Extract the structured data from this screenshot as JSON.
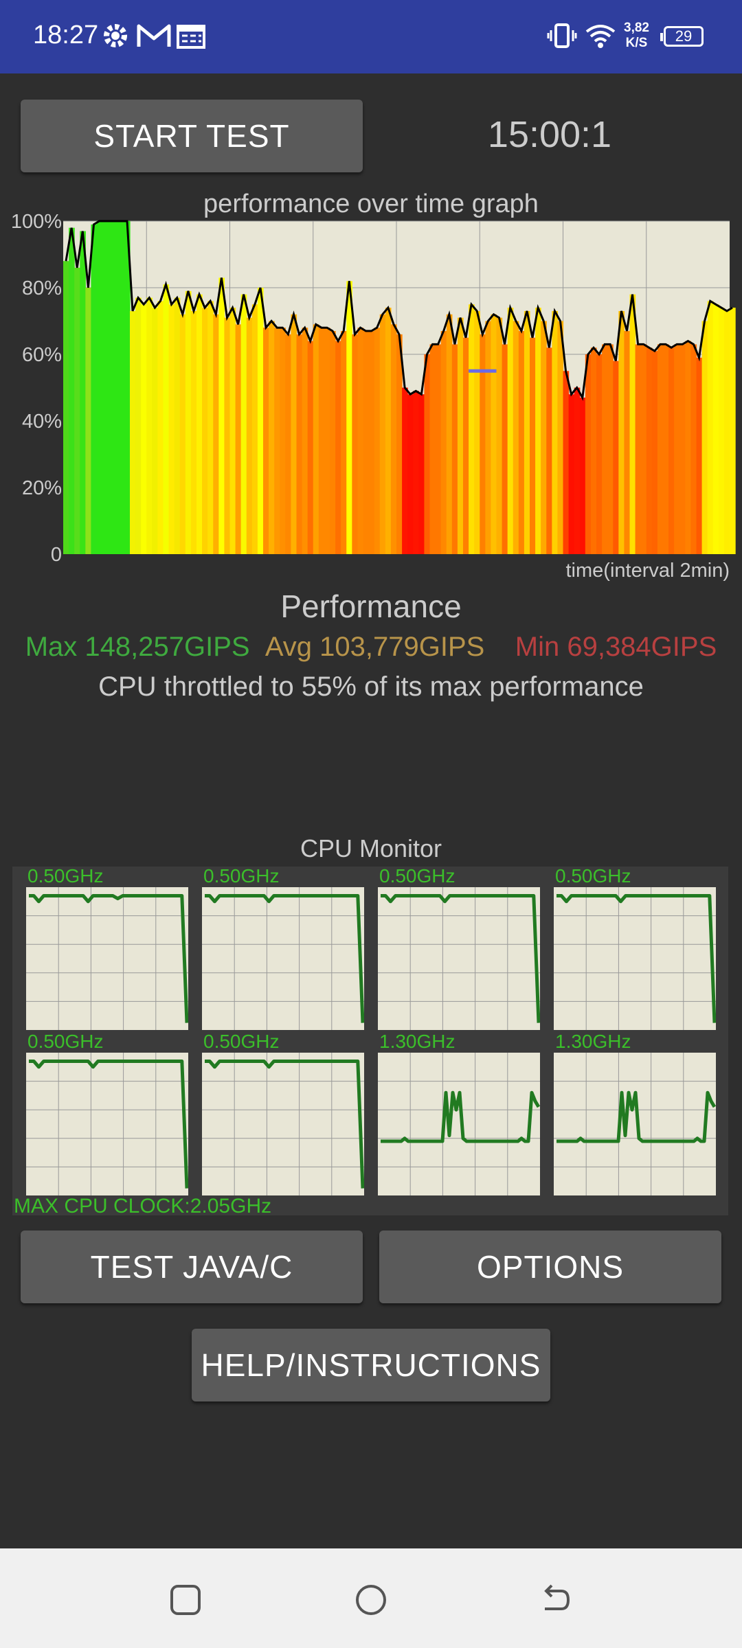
{
  "status_bar": {
    "time": "18:27",
    "icons": [
      "gear-icon",
      "gmail-icon",
      "calendar-icon",
      "vibrate-icon",
      "wifi-icon"
    ],
    "net_speed_value": "3,82",
    "net_speed_unit": "K/S",
    "battery": "29"
  },
  "controls": {
    "start_test": "START TEST",
    "timer": "15:00:1",
    "test_java_c": "TEST JAVA/C",
    "options": "OPTIONS",
    "help": "HELP/INSTRUCTIONS"
  },
  "chart_data": {
    "type": "area",
    "title": "performance over time graph",
    "xlabel": "time(interval 2min)",
    "ylabel": "",
    "ylim": [
      0,
      100
    ],
    "y_ticks": [
      "0",
      "20%",
      "40%",
      "60%",
      "80%",
      "100%"
    ],
    "x_gridlines": 8,
    "grid": true,
    "x": [
      0,
      1,
      2,
      3,
      4,
      5,
      6,
      7,
      8,
      9,
      10,
      11,
      12,
      13,
      14,
      15,
      16,
      17,
      18,
      19,
      20,
      21,
      22,
      23,
      24,
      25,
      26,
      27,
      28,
      29,
      30,
      31,
      32,
      33,
      34,
      35,
      36,
      37,
      38,
      39,
      40,
      41,
      42,
      43,
      44,
      45,
      46,
      47,
      48,
      49,
      50,
      51,
      52,
      53,
      54,
      55,
      56,
      57,
      58,
      59,
      60,
      61,
      62,
      63,
      64,
      65,
      66,
      67,
      68,
      69,
      70,
      71,
      72,
      73,
      74,
      75,
      76,
      77,
      78,
      79,
      80,
      81,
      82,
      83,
      84,
      85,
      86,
      87,
      88,
      89,
      90,
      91,
      92,
      93,
      94,
      95,
      96,
      97,
      98,
      99,
      100,
      101,
      102,
      103,
      104,
      105,
      106,
      107,
      108,
      109,
      110,
      111,
      112,
      113,
      114,
      115,
      116,
      117,
      118,
      119,
      120
    ],
    "series": [
      {
        "values": [
          88,
          98,
          86,
          97,
          80,
          99,
          100,
          100,
          100,
          100,
          100,
          100,
          73,
          77,
          75,
          77,
          74,
          76,
          81,
          75,
          77,
          72,
          79,
          73,
          78,
          74,
          76,
          72,
          83,
          71,
          74,
          69,
          78,
          71,
          75,
          80,
          68,
          70,
          68,
          68,
          66,
          72,
          66,
          68,
          64,
          69,
          68,
          68,
          67,
          64,
          67,
          82,
          66,
          68,
          67,
          67,
          68,
          72,
          74,
          69,
          66,
          50,
          48,
          49,
          48,
          60,
          63,
          63,
          67,
          72,
          63,
          71,
          65,
          75,
          73,
          66,
          70,
          72,
          71,
          63,
          74,
          70,
          67,
          73,
          65,
          74,
          70,
          62,
          73,
          70,
          55,
          48,
          50,
          47,
          60,
          62,
          60,
          63,
          63,
          58,
          73,
          67,
          78,
          63,
          63,
          62,
          61,
          63,
          63,
          62,
          63,
          63,
          64,
          63,
          59,
          70,
          76,
          75,
          74,
          73,
          74
        ],
        "colors": [
          "#4fd81a",
          "#3ce019",
          "#58dd1b",
          "#39e316",
          "#8ce21a",
          "#2fe417",
          "#2ee614",
          "#2ee614",
          "#2ee614",
          "#2ee614",
          "#2ee614",
          "#2ee614",
          "#f2f202",
          "#eef205",
          "#fbff00",
          "#f7f401",
          "#f1f000",
          "#fff000",
          "#f5ff00",
          "#ffeb00",
          "#f6e800",
          "#ffd800",
          "#fbf100",
          "#ffe000",
          "#fff200",
          "#ffd200",
          "#ffe000",
          "#ffb000",
          "#ffff00",
          "#ffc000",
          "#ffe000",
          "#ffa000",
          "#f9f900",
          "#ffc000",
          "#ffd000",
          "#ffff00",
          "#ff9000",
          "#ffb000",
          "#ff9800",
          "#ff9000",
          "#ff8800",
          "#ffb000",
          "#ff8000",
          "#ff9000",
          "#ff7000",
          "#ffa000",
          "#ff8800",
          "#ff8800",
          "#ff8400",
          "#ff7000",
          "#ff8400",
          "#ffff00",
          "#ff8000",
          "#ff8800",
          "#ff8400",
          "#ff8400",
          "#ff8c00",
          "#ffa000",
          "#ffb000",
          "#ff9000",
          "#ff8000",
          "#ff1500",
          "#ff1000",
          "#ff1500",
          "#ff1000",
          "#ff6000",
          "#ff7800",
          "#ff7800",
          "#ff8800",
          "#ffa000",
          "#ff7800",
          "#ffc000",
          "#ff8000",
          "#ffe000",
          "#ffd000",
          "#ff8000",
          "#ffa000",
          "#ffc000",
          "#ffb000",
          "#ff7000",
          "#ffe000",
          "#ffb000",
          "#ff8400",
          "#ffd000",
          "#ff8000",
          "#ffe000",
          "#ffa800",
          "#ff6c00",
          "#ffd000",
          "#ffb000",
          "#ff4000",
          "#ff1000",
          "#ff1500",
          "#ff1000",
          "#ff6000",
          "#ff7000",
          "#ff6400",
          "#ff7800",
          "#ff7800",
          "#ff5a00",
          "#ffc000",
          "#ff8800",
          "#ffe000",
          "#ff7800",
          "#ff7800",
          "#ff6800",
          "#ff6400",
          "#ff7800",
          "#ff7800",
          "#ff6800",
          "#ff7800",
          "#ff7800",
          "#ff8000",
          "#ff7000",
          "#ff5a00",
          "#ffe000",
          "#fff000",
          "#fffa00",
          "#fff500",
          "#ffee00",
          "#fff000"
        ]
      },
      {
        "name": "",
        "x": [
          73,
          78
        ],
        "values": [
          55,
          55
        ],
        "color": "#6a6ae8"
      }
    ]
  },
  "performance": {
    "heading": "Performance",
    "max": "Max 148,257GIPS",
    "avg": "Avg 103,779GIPS",
    "min": "Min 69,384GIPS",
    "throttle_note": "CPU throttled to 55% of its max performance",
    "colors": {
      "max": "#3faa3f",
      "avg": "#b8944a",
      "min": "#b84040",
      "note": "#cccccc"
    }
  },
  "cpu_monitor": {
    "title": "CPU Monitor",
    "max_clock": "MAX CPU CLOCK:2.05GHz",
    "label_color": "#3bbf2a",
    "line_color": "#217a21",
    "cores": [
      {
        "freq": "0.50GHz",
        "values": [
          94,
          94,
          90,
          94,
          94,
          94,
          94,
          94,
          94,
          94,
          94,
          94,
          90,
          94,
          94,
          94,
          94,
          94,
          92,
          94,
          94,
          94,
          94,
          94,
          94,
          94,
          94,
          94,
          94,
          94,
          94,
          94,
          5
        ]
      },
      {
        "freq": "0.50GHz",
        "values": [
          94,
          94,
          90,
          94,
          94,
          94,
          94,
          94,
          94,
          94,
          94,
          94,
          94,
          90,
          94,
          94,
          94,
          94,
          94,
          94,
          94,
          94,
          94,
          94,
          94,
          94,
          94,
          94,
          94,
          94,
          94,
          94,
          5
        ]
      },
      {
        "freq": "0.50GHz",
        "values": [
          94,
          94,
          90,
          94,
          94,
          94,
          94,
          94,
          94,
          94,
          94,
          94,
          94,
          90,
          94,
          94,
          94,
          94,
          94,
          94,
          94,
          94,
          94,
          94,
          94,
          94,
          94,
          94,
          94,
          94,
          94,
          94,
          5
        ]
      },
      {
        "freq": "0.50GHz",
        "values": [
          94,
          94,
          90,
          94,
          94,
          94,
          94,
          94,
          94,
          94,
          94,
          94,
          94,
          90,
          94,
          94,
          94,
          94,
          94,
          94,
          94,
          94,
          94,
          94,
          94,
          94,
          94,
          94,
          94,
          94,
          94,
          94,
          5
        ]
      },
      {
        "freq": "0.50GHz",
        "values": [
          94,
          94,
          90,
          94,
          94,
          94,
          94,
          94,
          94,
          94,
          94,
          94,
          94,
          90,
          94,
          94,
          94,
          94,
          94,
          94,
          94,
          94,
          94,
          94,
          94,
          94,
          94,
          94,
          94,
          94,
          94,
          94,
          5
        ]
      },
      {
        "freq": "0.50GHz",
        "values": [
          94,
          94,
          90,
          94,
          94,
          94,
          94,
          94,
          94,
          94,
          94,
          94,
          94,
          90,
          94,
          94,
          94,
          94,
          94,
          94,
          94,
          94,
          94,
          94,
          94,
          94,
          94,
          94,
          94,
          94,
          94,
          94,
          5
        ]
      },
      {
        "freq": "1.30GHz",
        "values": [
          38,
          38,
          38,
          38,
          38,
          38,
          38,
          40,
          38,
          38,
          38,
          38,
          38,
          38,
          38,
          38,
          38,
          38,
          38,
          72,
          42,
          72,
          60,
          72,
          40,
          38,
          38,
          38,
          38,
          38,
          38,
          38,
          38,
          38,
          38,
          38,
          38,
          38,
          38,
          38,
          38,
          40,
          38,
          38,
          72,
          66,
          62
        ]
      },
      {
        "freq": "1.30GHz",
        "values": [
          38,
          38,
          38,
          38,
          38,
          38,
          38,
          40,
          38,
          38,
          38,
          38,
          38,
          38,
          38,
          38,
          38,
          38,
          38,
          72,
          42,
          72,
          60,
          72,
          40,
          38,
          38,
          38,
          38,
          38,
          38,
          38,
          38,
          38,
          38,
          38,
          38,
          38,
          38,
          38,
          38,
          40,
          38,
          38,
          72,
          66,
          62
        ]
      }
    ]
  },
  "nav_bar": {
    "buttons": [
      "recent-apps-icon",
      "home-icon",
      "back-icon"
    ]
  }
}
